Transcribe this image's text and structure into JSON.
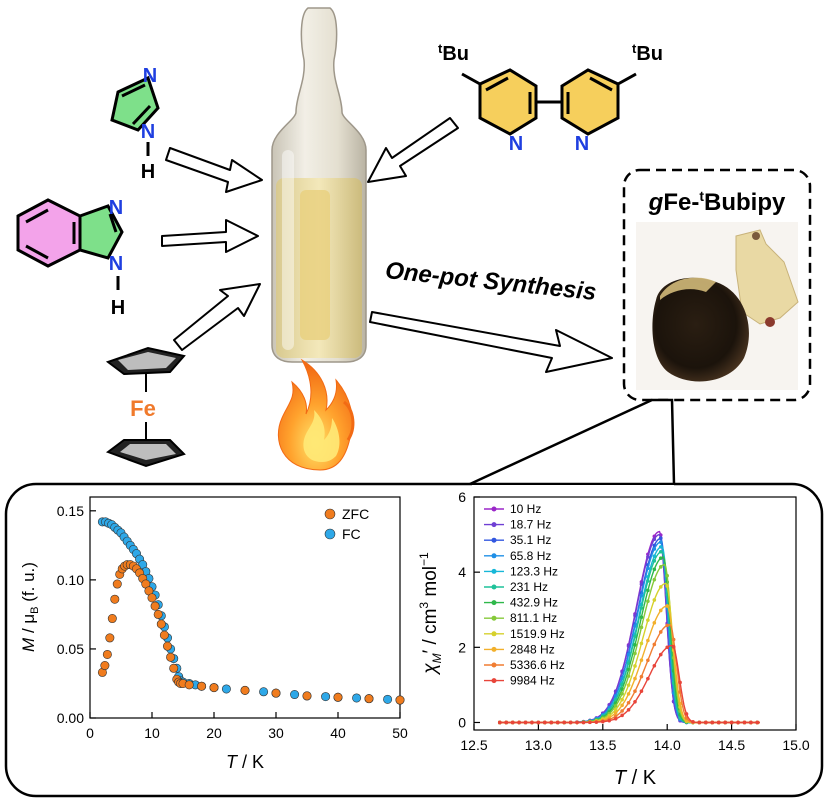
{
  "scheme": {
    "precursor_tbu_label": "Bu",
    "precursor_tbu_sup": "t",
    "atom_N": "N",
    "atom_H": "H",
    "atom_Fe": "Fe",
    "synthesis_label": "One-pot Synthesis",
    "product_prefix": "g",
    "product_fe": "Fe-",
    "product_sup": "t",
    "product_suffix": "Bubipy",
    "colors": {
      "imidazole_fill": "#7ee08a",
      "benzo_fill": "#f3a3ea",
      "bipy_fill": "#f6cf5c",
      "nitrogen": "#1f3fe0",
      "fe": "#f07a2c"
    }
  },
  "chart_data": [
    {
      "type": "scatter",
      "title": "",
      "xlabel_var": "T",
      "xlabel_unit": " / K",
      "ylabel_var": "M",
      "ylabel_mid": " / μ",
      "ylabel_sub": "B",
      "ylabel_unit": " (f. u.)",
      "xlim": [
        0,
        50
      ],
      "ylim": [
        0,
        0.16
      ],
      "xticks": [
        "0",
        "10",
        "20",
        "30",
        "40",
        "50"
      ],
      "yticks": [
        "0.00",
        "0.05",
        "0.10",
        "0.15"
      ],
      "legend_position": "top-right",
      "grid": false,
      "series": [
        {
          "name": "ZFC",
          "color": "#f07c1e",
          "x": [
            2.0,
            2.4,
            2.8,
            3.2,
            3.6,
            4.0,
            4.4,
            4.8,
            5.2,
            5.6,
            6.0,
            6.5,
            7.0,
            7.5,
            8.0,
            8.5,
            9.0,
            9.5,
            10.0,
            10.5,
            11.0,
            11.5,
            12.0,
            12.5,
            13.0,
            13.5,
            14.0,
            14.3,
            14.6,
            15.0,
            16.0,
            18.0,
            20.0,
            25.0,
            30.0,
            35.0,
            40.0,
            45.0,
            50.0
          ],
          "y": [
            0.033,
            0.038,
            0.046,
            0.058,
            0.072,
            0.086,
            0.097,
            0.104,
            0.108,
            0.11,
            0.111,
            0.111,
            0.11,
            0.108,
            0.105,
            0.101,
            0.097,
            0.092,
            0.087,
            0.081,
            0.075,
            0.068,
            0.06,
            0.052,
            0.044,
            0.036,
            0.028,
            0.026,
            0.025,
            0.025,
            0.024,
            0.023,
            0.022,
            0.02,
            0.018,
            0.016,
            0.015,
            0.014,
            0.013
          ]
        },
        {
          "name": "FC",
          "color": "#2ea8e8",
          "x": [
            2.0,
            2.5,
            3.0,
            3.5,
            4.0,
            4.5,
            5.0,
            5.5,
            6.0,
            6.5,
            7.0,
            7.5,
            8.0,
            8.5,
            9.0,
            9.5,
            10.0,
            10.5,
            11.0,
            11.5,
            12.0,
            12.5,
            13.0,
            13.5,
            14.0,
            14.3,
            14.6,
            15.0,
            16.0,
            17.0,
            18.0,
            20.0,
            22.0,
            25.0,
            28.0,
            30.0,
            33.0,
            35.0,
            38.0,
            40.0,
            43.0,
            45.0,
            48.0,
            50.0
          ],
          "y": [
            0.142,
            0.142,
            0.141,
            0.14,
            0.138,
            0.136,
            0.134,
            0.131,
            0.128,
            0.125,
            0.122,
            0.119,
            0.115,
            0.111,
            0.106,
            0.101,
            0.095,
            0.089,
            0.082,
            0.074,
            0.066,
            0.058,
            0.05,
            0.043,
            0.036,
            0.03,
            0.027,
            0.026,
            0.025,
            0.024,
            0.023,
            0.022,
            0.021,
            0.02,
            0.019,
            0.018,
            0.017,
            0.016,
            0.0155,
            0.015,
            0.0145,
            0.014,
            0.0135,
            0.013
          ]
        }
      ]
    },
    {
      "type": "line",
      "title": "",
      "xlabel_var": "T",
      "xlabel_unit": " / K",
      "ylabel_var": "χ",
      "ylabel_sub": "M",
      "ylabel_prime": "′",
      "ylabel_unit": " / cm",
      "ylabel_unit_sup": "3",
      "ylabel_unit2": " mol",
      "ylabel_unit2_sup": "−1",
      "xlim": [
        12.5,
        15.0
      ],
      "ylim": [
        -0.2,
        6.0
      ],
      "xticks": [
        "12.5",
        "13.0",
        "13.5",
        "14.0",
        "14.5",
        "15.0"
      ],
      "yticks": [
        "0",
        "2",
        "4",
        "6"
      ],
      "legend_position": "top-left",
      "grid": false,
      "series": [
        {
          "name": "10 Hz",
          "color": "#9b27c9",
          "peak_x": 13.94,
          "peak_y": 5.08
        },
        {
          "name": "18.7 Hz",
          "color": "#6f3fd4",
          "peak_x": 13.94,
          "peak_y": 5.0
        },
        {
          "name": "35.1 Hz",
          "color": "#3257e0",
          "peak_x": 13.95,
          "peak_y": 4.9
        },
        {
          "name": "65.8 Hz",
          "color": "#1f8fe6",
          "peak_x": 13.95,
          "peak_y": 4.8
        },
        {
          "name": "123.3 Hz",
          "color": "#17b7d8",
          "peak_x": 13.96,
          "peak_y": 4.68
        },
        {
          "name": "231 Hz",
          "color": "#1fc29a",
          "peak_x": 13.96,
          "peak_y": 4.55
        },
        {
          "name": "432.9 Hz",
          "color": "#2fb84a",
          "peak_x": 13.97,
          "peak_y": 4.4
        },
        {
          "name": "811.1 Hz",
          "color": "#86c93a",
          "peak_x": 13.98,
          "peak_y": 4.2
        },
        {
          "name": "1519.9 Hz",
          "color": "#d6d12c",
          "peak_x": 13.99,
          "peak_y": 3.7
        },
        {
          "name": "2848 Hz",
          "color": "#f2b02c",
          "peak_x": 14.0,
          "peak_y": 3.1
        },
        {
          "name": "5336.6 Hz",
          "color": "#f07d32",
          "peak_x": 14.02,
          "peak_y": 2.6
        },
        {
          "name": "9984 Hz",
          "color": "#e8453a",
          "peak_x": 14.04,
          "peak_y": 2.05
        }
      ]
    }
  ]
}
